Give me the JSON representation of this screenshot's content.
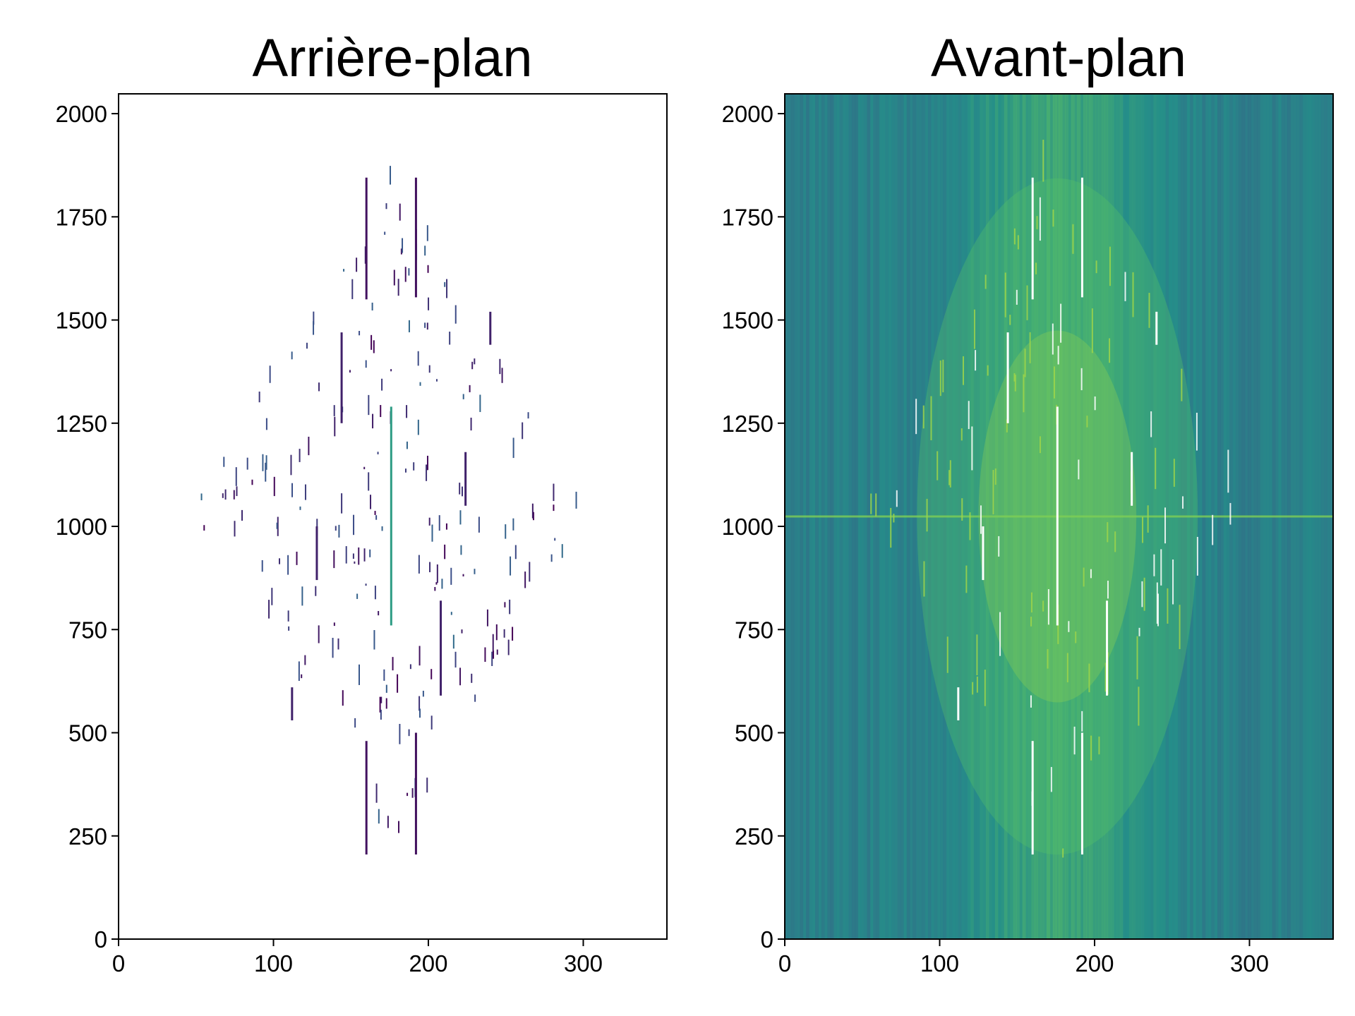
{
  "chart_data": [
    {
      "type": "heatmap",
      "title": "Arrière-plan",
      "xlabel": "",
      "ylabel": "",
      "xlim": [
        0,
        354
      ],
      "ylim": [
        0,
        2048
      ],
      "xticks": [
        0,
        100,
        200,
        300
      ],
      "yticks": [
        0,
        250,
        500,
        750,
        1000,
        1250,
        1500,
        1750,
        2000
      ],
      "grid": false,
      "colormap": "viridis",
      "background_color": "#ffffff",
      "dense_noise": false,
      "center": [
        176,
        1024
      ],
      "stripes": [
        {
          "x": 176,
          "y0": 760,
          "y1": 1290,
          "level": 0.55
        },
        {
          "x": 160,
          "y0": 205,
          "y1": 480,
          "level": 0.05
        },
        {
          "x": 192,
          "y0": 205,
          "y1": 500,
          "level": 0.05
        },
        {
          "x": 160,
          "y0": 1550,
          "y1": 1845,
          "level": 0.05
        },
        {
          "x": 192,
          "y0": 1555,
          "y1": 1845,
          "level": 0.05
        },
        {
          "x": 144,
          "y0": 1250,
          "y1": 1470,
          "level": 0.1
        },
        {
          "x": 208,
          "y0": 590,
          "y1": 820,
          "level": 0.1
        },
        {
          "x": 128,
          "y0": 870,
          "y1": 1000,
          "level": 0.1
        },
        {
          "x": 224,
          "y0": 1050,
          "y1": 1180,
          "level": 0.1
        },
        {
          "x": 112,
          "y0": 530,
          "y1": 610,
          "level": 0.1
        },
        {
          "x": 240,
          "y0": 1440,
          "y1": 1520,
          "level": 0.1
        }
      ]
    },
    {
      "type": "heatmap",
      "title": "Avant-plan",
      "xlabel": "",
      "ylabel": "",
      "xlim": [
        0,
        354
      ],
      "ylim": [
        0,
        2048
      ],
      "xticks": [
        0,
        100,
        200,
        300
      ],
      "yticks": [
        0,
        250,
        500,
        750,
        1000,
        1250,
        1500,
        1750,
        2000
      ],
      "grid": false,
      "colormap": "viridis",
      "background_color": "#2a8a86",
      "dense_noise": true,
      "center": [
        176,
        1024
      ],
      "stripes": [
        {
          "x": 176,
          "y0": 760,
          "y1": 1290,
          "level": 1.0
        },
        {
          "x": 160,
          "y0": 205,
          "y1": 480,
          "level": 1.0
        },
        {
          "x": 192,
          "y0": 205,
          "y1": 500,
          "level": 1.0
        },
        {
          "x": 160,
          "y0": 1550,
          "y1": 1845,
          "level": 1.0
        },
        {
          "x": 192,
          "y0": 1555,
          "y1": 1845,
          "level": 1.0
        },
        {
          "x": 144,
          "y0": 1250,
          "y1": 1470,
          "level": 1.0
        },
        {
          "x": 208,
          "y0": 590,
          "y1": 820,
          "level": 1.0
        },
        {
          "x": 128,
          "y0": 870,
          "y1": 1000,
          "level": 1.0
        },
        {
          "x": 224,
          "y0": 1050,
          "y1": 1180,
          "level": 1.0
        },
        {
          "x": 112,
          "y0": 530,
          "y1": 610,
          "level": 1.0
        },
        {
          "x": 240,
          "y0": 1440,
          "y1": 1520,
          "level": 1.0
        }
      ]
    }
  ]
}
